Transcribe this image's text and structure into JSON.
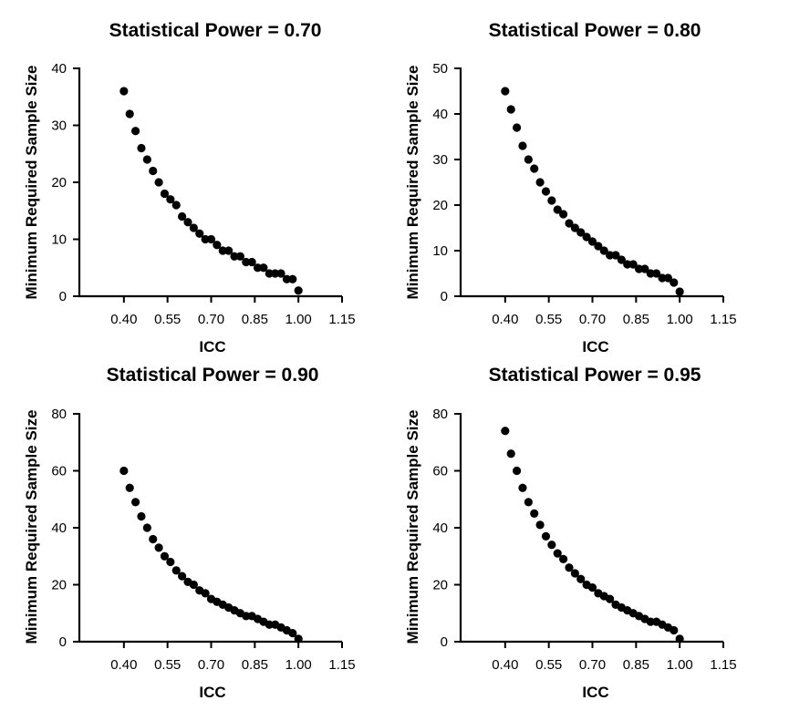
{
  "chart_data": [
    {
      "type": "scatter",
      "title": "Statistical Power = 0.70",
      "xlabel": "ICC",
      "ylabel": "Minimum Required Sample Size",
      "xlim": [
        0.25,
        1.15
      ],
      "ylim": [
        0,
        40
      ],
      "xticks": [
        "0.40",
        "0.55",
        "0.70",
        "0.85",
        "1.00",
        "1.15"
      ],
      "yticks": [
        "0",
        "10",
        "20",
        "30",
        "40"
      ],
      "x": [
        0.4,
        0.42,
        0.44,
        0.46,
        0.48,
        0.5,
        0.52,
        0.54,
        0.56,
        0.58,
        0.6,
        0.62,
        0.64,
        0.66,
        0.68,
        0.7,
        0.72,
        0.74,
        0.76,
        0.78,
        0.8,
        0.82,
        0.84,
        0.86,
        0.88,
        0.9,
        0.92,
        0.94,
        0.96,
        0.98,
        1.0
      ],
      "y": [
        36,
        32,
        29,
        26,
        24,
        22,
        20,
        18,
        17,
        16,
        14,
        13,
        12,
        11,
        10,
        10,
        9,
        8,
        8,
        7,
        7,
        6,
        6,
        5,
        5,
        4,
        4,
        4,
        3,
        3,
        1
      ]
    },
    {
      "type": "scatter",
      "title": "Statistical Power = 0.80",
      "xlabel": "ICC",
      "ylabel": "Minimum Required Sample Size",
      "xlim": [
        0.25,
        1.15
      ],
      "ylim": [
        0,
        50
      ],
      "xticks": [
        "0.40",
        "0.55",
        "0.70",
        "0.85",
        "1.00",
        "1.15"
      ],
      "yticks": [
        "0",
        "10",
        "20",
        "30",
        "40",
        "50"
      ],
      "x": [
        0.4,
        0.42,
        0.44,
        0.46,
        0.48,
        0.5,
        0.52,
        0.54,
        0.56,
        0.58,
        0.6,
        0.62,
        0.64,
        0.66,
        0.68,
        0.7,
        0.72,
        0.74,
        0.76,
        0.78,
        0.8,
        0.82,
        0.84,
        0.86,
        0.88,
        0.9,
        0.92,
        0.94,
        0.96,
        0.98,
        1.0
      ],
      "y": [
        45,
        41,
        37,
        33,
        30,
        28,
        25,
        23,
        21,
        19,
        18,
        16,
        15,
        14,
        13,
        12,
        11,
        10,
        9,
        9,
        8,
        7,
        7,
        6,
        6,
        5,
        5,
        4,
        4,
        3,
        1
      ]
    },
    {
      "type": "scatter",
      "title": "Statistical Power = 0.90",
      "xlabel": "ICC",
      "ylabel": "Minimum Required Sample Size",
      "xlim": [
        0.25,
        1.15
      ],
      "ylim": [
        0,
        80
      ],
      "xticks": [
        "0.40",
        "0.55",
        "0.70",
        "0.85",
        "1.00",
        "1.15"
      ],
      "yticks": [
        "0",
        "20",
        "40",
        "60",
        "80"
      ],
      "x": [
        0.4,
        0.42,
        0.44,
        0.46,
        0.48,
        0.5,
        0.52,
        0.54,
        0.56,
        0.58,
        0.6,
        0.62,
        0.64,
        0.66,
        0.68,
        0.7,
        0.72,
        0.74,
        0.76,
        0.78,
        0.8,
        0.82,
        0.84,
        0.86,
        0.88,
        0.9,
        0.92,
        0.94,
        0.96,
        0.98,
        1.0
      ],
      "y": [
        60,
        54,
        49,
        44,
        40,
        36,
        33,
        30,
        28,
        25,
        23,
        21,
        20,
        18,
        17,
        15,
        14,
        13,
        12,
        11,
        10,
        9,
        9,
        8,
        7,
        6,
        6,
        5,
        4,
        3,
        1
      ]
    },
    {
      "type": "scatter",
      "title": "Statistical Power = 0.95",
      "xlabel": "ICC",
      "ylabel": "Minimum Required Sample Size",
      "xlim": [
        0.25,
        1.15
      ],
      "ylim": [
        0,
        80
      ],
      "xticks": [
        "0.40",
        "0.55",
        "0.70",
        "0.85",
        "1.00",
        "1.15"
      ],
      "yticks": [
        "0",
        "20",
        "40",
        "60",
        "80"
      ],
      "x": [
        0.4,
        0.42,
        0.44,
        0.46,
        0.48,
        0.5,
        0.52,
        0.54,
        0.56,
        0.58,
        0.6,
        0.62,
        0.64,
        0.66,
        0.68,
        0.7,
        0.72,
        0.74,
        0.76,
        0.78,
        0.8,
        0.82,
        0.84,
        0.86,
        0.88,
        0.9,
        0.92,
        0.94,
        0.96,
        0.98,
        1.0
      ],
      "y": [
        74,
        66,
        60,
        54,
        49,
        45,
        41,
        37,
        34,
        31,
        29,
        26,
        24,
        22,
        20,
        19,
        17,
        16,
        15,
        13,
        12,
        11,
        10,
        9,
        8,
        7,
        7,
        6,
        5,
        4,
        1
      ]
    }
  ]
}
